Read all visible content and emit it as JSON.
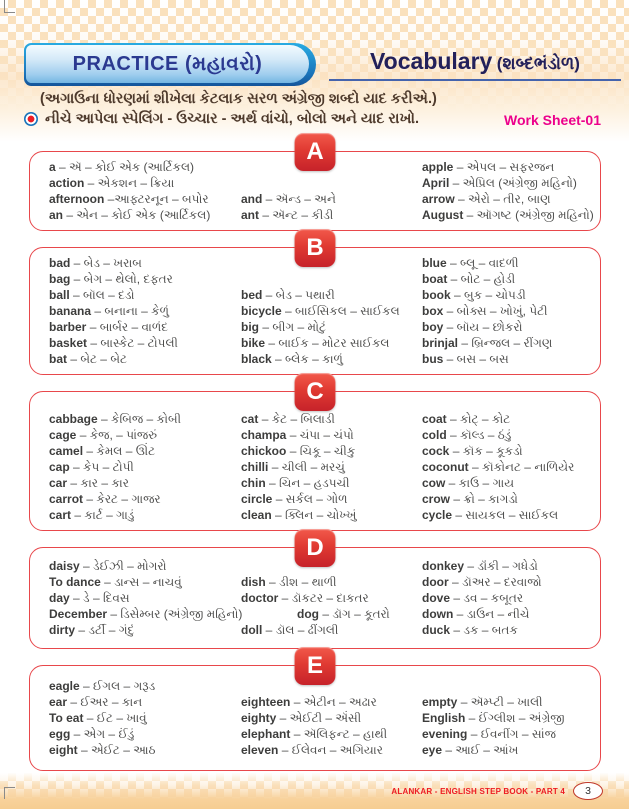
{
  "colors": {
    "peach_checker": "#fae1bd",
    "box_border_red": "#e8474b",
    "tab_red": "#d92b2d",
    "practice_blue_border": "#1b75bb",
    "practice_text_navy": "#2b3990",
    "vocab_navy": "#23205a",
    "body_brown": "#4e3a2c",
    "worksheet_magenta": "#ec008c",
    "footer_red": "#ed1c24"
  },
  "header": {
    "practice_label": "PRACTICE (મહાવરો)",
    "vocab_title": "Vocabulary",
    "vocab_gujarati": "(શબ્દભંડોળ)",
    "subtitle": "(અગાઉના ધોરણમાં શીખેલા કેટલાક સરળ અંગ્રેજી શબ્દો યાદ કરીએ.)",
    "instruction": "નીચે આપેલા સ્પેલિંગ - ઉચ્ચાર - અર્થ વાંચો, બોલો અને યાદ રાખો.",
    "worksheet_label": "Work Sheet-01"
  },
  "sections": [
    {
      "letter": "A",
      "columns": [
        [
          "a – ઍ – કોઈ એક (આર્ટિકલ)",
          "action – એકશન – ક્રિયા",
          "afternoon –આફ્ટરનૂન – બપોર",
          "an – એન – કોઈ એક (આર્ટિકલ)"
        ],
        [
          "and – ઍન્ડ – અને",
          "ant – ઍન્ટ – કીડી"
        ],
        [
          "apple – એપલ – સફરજન",
          "April – એપ્રિલ (અંગ્રેજી મહિનો)",
          "arrow – એરો – તીર, બાણ",
          "August – ઑગષ્ટ (અંગ્રેજી મહિનો)"
        ]
      ]
    },
    {
      "letter": "B",
      "columns": [
        [
          "bad – બેડ – ખરાબ",
          "bag – બેગ – થેલો, દફતર",
          "ball – બૉલ – દડો",
          "banana – બનાના – કેળું",
          "barber – બાર્બર – વાળંદ",
          "basket – બાસ્કેટ – ટોપલી",
          "bat – બેટ – બેટ"
        ],
        [
          "bed – બેડ – પથારી",
          "bicycle – બાઈસિકલ – સાઈકલ",
          "big – બીગ – મોટું",
          "bike – બાઈક – મોટર સાઈકલ",
          "black – બ્લેક – કાળું"
        ],
        [
          "blue – બ્લૂ – વાદળી",
          "boat – બોટ – હોડી",
          "book – બુક – ચોપડી",
          "box – બોક્સ – ખોખું, પેટી",
          "boy – બૉય – છોકરો",
          "brinjal – બ્રિન્જલ – રીંગણ",
          "bus – બસ – બસ"
        ]
      ]
    },
    {
      "letter": "C",
      "columns": [
        [
          "cabbage – કેબિજ – કોબી",
          "cage – કેજ, – પાંજરું",
          "camel – કેમલ – ઊંટ",
          "cap – કેપ – ટોપી",
          "car – કાર – કાર",
          "carrot – કેરટ – ગાજર",
          "cart – કાર્ટ – ગાડું"
        ],
        [
          "cat – કેટ – બિલાડી",
          "champa – ચંપા – ચંપો",
          "chickoo – ચિકૂ – ચીકુ",
          "chilli – ચીલી – મરચું",
          "chin – ચિન – હડપચી",
          "circle – સર્કલ – ગોળ",
          "clean – ક્લિન – ચોખ્ખું"
        ],
        [
          "coat – કોટ્ – કોટ",
          "cold – કૉલ્ડ – ઠંડું",
          "cock – કૉક – કૂકડો",
          "coconut – કૉકોનટ – નાળિયેર",
          "cow – કાઉ – ગાય",
          "crow – ક્રો – કાગડો",
          "cycle – સાયકલ – સાઈકલ"
        ]
      ]
    },
    {
      "letter": "D",
      "columns": [
        [
          "daisy – ડેઈઝી – મોગરો",
          "To dance – ડાન્સ – નાચવું",
          "day – ડે – દિવસ",
          "December – ડિસેમ્બર (અંગ્રેજી મહિનો)",
          "dirty – ડર્ટી – ગંદું"
        ],
        [
          "dish – ડીશ – થાળી",
          "doctor – ડૉકટર – દાકતર",
          "dog – ડૉગ – કૂતરો",
          "doll – ડૉલ – ઢીંગલી"
        ],
        [
          "donkey – ડૉંકી – ગધેડો",
          "door – ડૉઅર – દરવાજો",
          "dove – ડવ – કબૂતર",
          "down – ડાઉન – નીચે",
          "duck – ડક – બતક"
        ]
      ]
    },
    {
      "letter": "E",
      "columns": [
        [
          "eagle – ઈગલ – ગરૂડ",
          "ear – ઈઅર – કાન",
          "To eat – ઈટ – ખાવું",
          "egg – એગ – ઈંડું",
          "eight – એઈટ – આઠ"
        ],
        [
          "eighteen – એટીન – અઢાર",
          "eighty – એઈટી – ઍંસી",
          "elephant – ઍલિફન્ટ – હાથી",
          "eleven – ઈલેવન – અગિયાર"
        ],
        [
          "empty – ઍમ્પ્ટી – ખાલી",
          "English – ઈંગ્લીશ – અંગ્રેજી",
          "evening – ઈવનીંગ – સાંજ",
          "eye – આઈ – આંખ"
        ]
      ]
    }
  ],
  "footer": {
    "book_label": "ALANKAR - ENGLISH STEP BOOK - PART 4",
    "page_number": "3"
  }
}
